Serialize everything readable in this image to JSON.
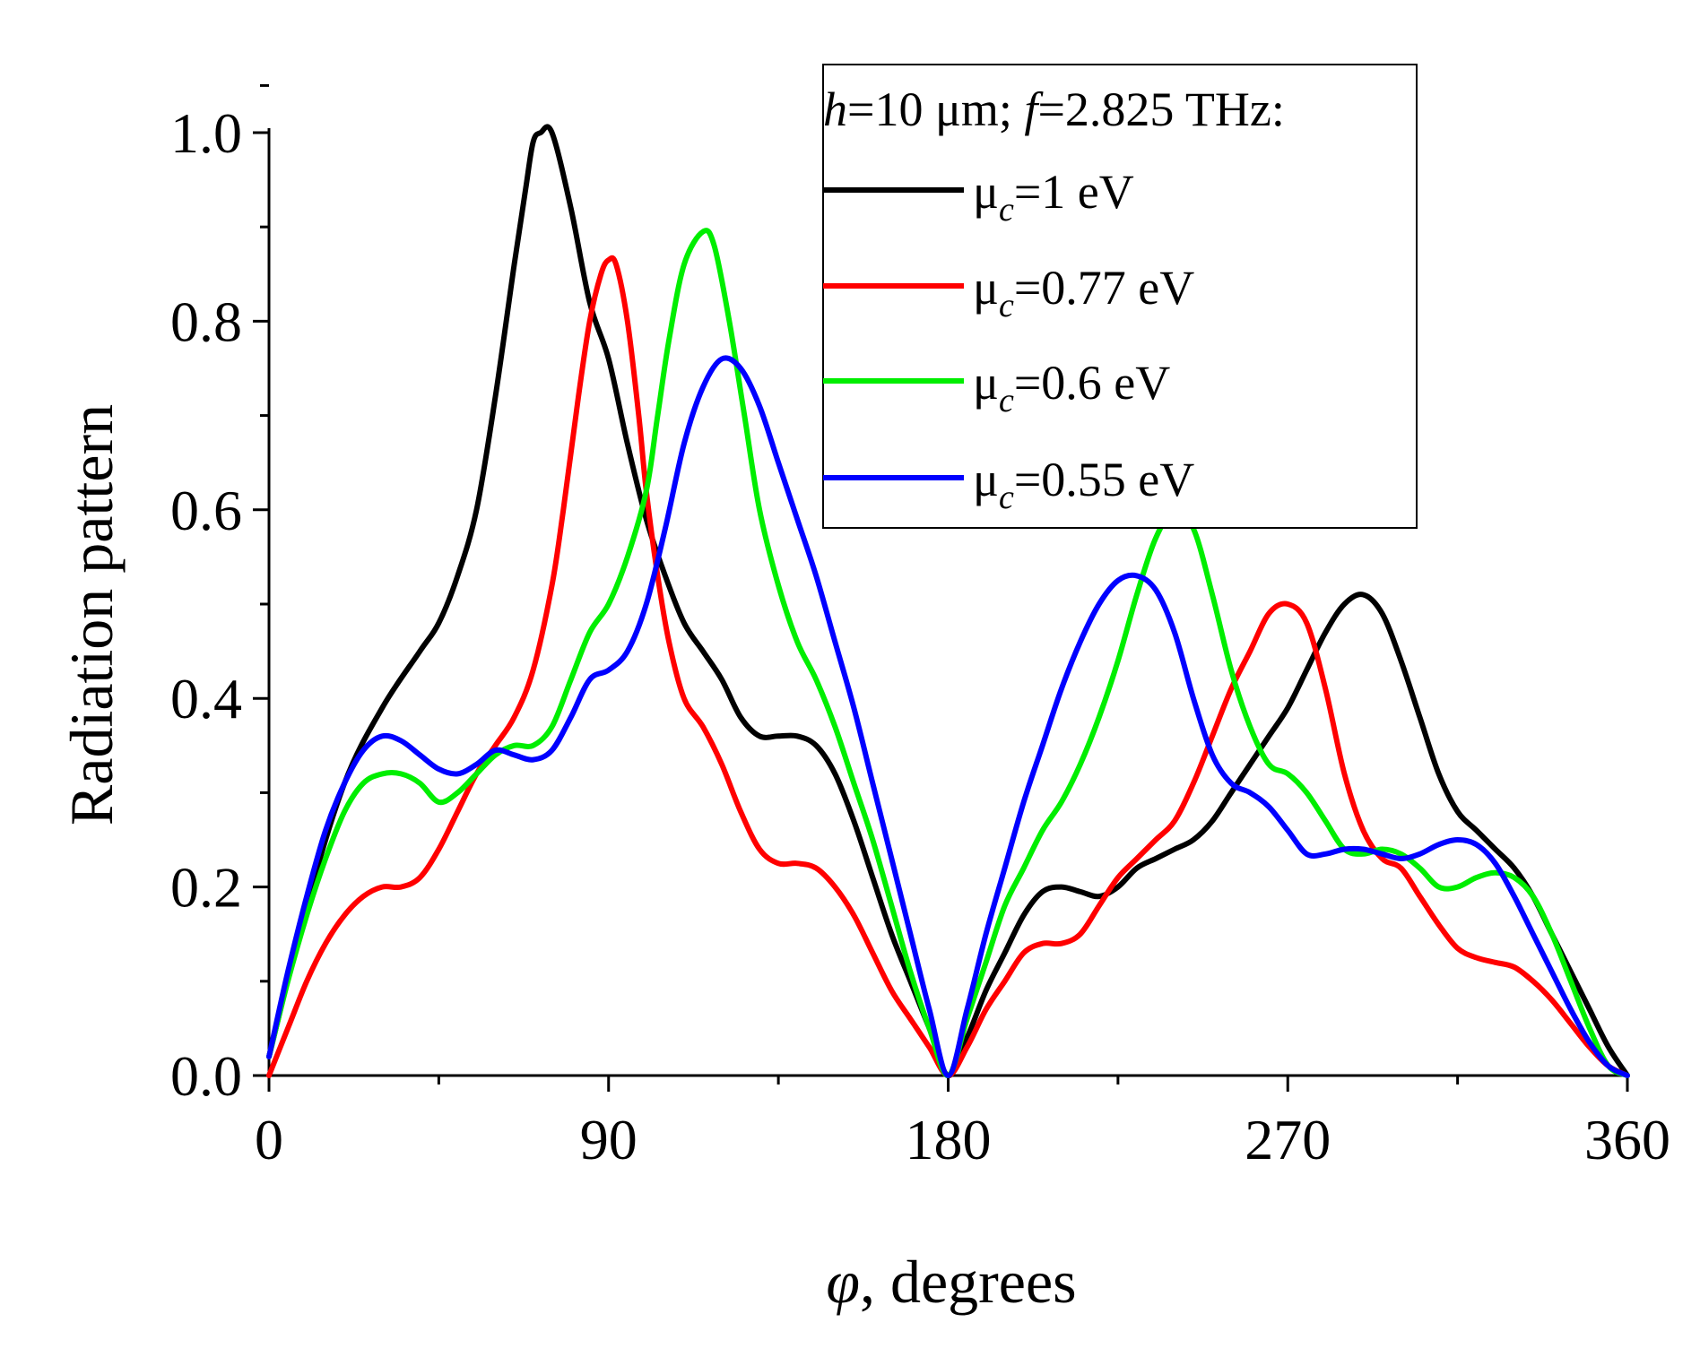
{
  "chart_data": {
    "type": "line",
    "title": "",
    "xlabel_var": "φ",
    "xlabel_rest": ", degrees",
    "ylabel": "Radiation pattern",
    "xlim": [
      0,
      360
    ],
    "ylim": [
      0,
      1.0
    ],
    "xticks": [
      0,
      90,
      180,
      270,
      360
    ],
    "xtick_labels": [
      "0",
      "90",
      "180",
      "270",
      "360"
    ],
    "yticks": [
      0.0,
      0.2,
      0.4,
      0.6,
      0.8,
      1.0
    ],
    "ytick_labels": [
      "0.0",
      "0.2",
      "0.4",
      "0.6",
      "0.8",
      "1.0"
    ],
    "grid": false,
    "legend": {
      "placement": "top-right",
      "header_h": "h",
      "header_mid": "=10 μm; ",
      "header_f": "f",
      "header_end": "=2.825 THz:"
    },
    "series": [
      {
        "name": "μc=1 eV",
        "label_mu": "μ",
        "label_sub": "c",
        "label_rest": "=1 eV",
        "color": "#000000",
        "points": [
          [
            0,
            0.02
          ],
          [
            10,
            0.18
          ],
          [
            20,
            0.31
          ],
          [
            30,
            0.39
          ],
          [
            40,
            0.45
          ],
          [
            45,
            0.48
          ],
          [
            50,
            0.53
          ],
          [
            55,
            0.6
          ],
          [
            60,
            0.72
          ],
          [
            65,
            0.86
          ],
          [
            68,
            0.94
          ],
          [
            70,
            0.99
          ],
          [
            72,
            1.0
          ],
          [
            75,
            1.0
          ],
          [
            80,
            0.92
          ],
          [
            85,
            0.82
          ],
          [
            90,
            0.76
          ],
          [
            95,
            0.67
          ],
          [
            100,
            0.59
          ],
          [
            105,
            0.53
          ],
          [
            110,
            0.48
          ],
          [
            115,
            0.45
          ],
          [
            120,
            0.42
          ],
          [
            125,
            0.38
          ],
          [
            130,
            0.36
          ],
          [
            135,
            0.36
          ],
          [
            140,
            0.36
          ],
          [
            145,
            0.35
          ],
          [
            150,
            0.32
          ],
          [
            155,
            0.27
          ],
          [
            160,
            0.21
          ],
          [
            165,
            0.15
          ],
          [
            170,
            0.1
          ],
          [
            175,
            0.05
          ],
          [
            180,
            0.0
          ],
          [
            185,
            0.04
          ],
          [
            190,
            0.09
          ],
          [
            195,
            0.13
          ],
          [
            200,
            0.17
          ],
          [
            205,
            0.195
          ],
          [
            210,
            0.2
          ],
          [
            215,
            0.195
          ],
          [
            220,
            0.19
          ],
          [
            225,
            0.2
          ],
          [
            230,
            0.22
          ],
          [
            235,
            0.23
          ],
          [
            240,
            0.24
          ],
          [
            245,
            0.25
          ],
          [
            250,
            0.27
          ],
          [
            255,
            0.3
          ],
          [
            260,
            0.33
          ],
          [
            265,
            0.36
          ],
          [
            270,
            0.39
          ],
          [
            275,
            0.43
          ],
          [
            280,
            0.47
          ],
          [
            285,
            0.5
          ],
          [
            290,
            0.51
          ],
          [
            295,
            0.49
          ],
          [
            300,
            0.44
          ],
          [
            305,
            0.38
          ],
          [
            310,
            0.32
          ],
          [
            315,
            0.28
          ],
          [
            320,
            0.26
          ],
          [
            325,
            0.24
          ],
          [
            330,
            0.22
          ],
          [
            335,
            0.19
          ],
          [
            340,
            0.15
          ],
          [
            345,
            0.11
          ],
          [
            350,
            0.07
          ],
          [
            355,
            0.03
          ],
          [
            360,
            0.0
          ]
        ]
      },
      {
        "name": "μc=0.77 eV",
        "label_mu": "μ",
        "label_sub": "c",
        "label_rest": "=0.77 eV",
        "color": "#ff0000",
        "points": [
          [
            0,
            0.0
          ],
          [
            5,
            0.05
          ],
          [
            10,
            0.1
          ],
          [
            15,
            0.14
          ],
          [
            20,
            0.17
          ],
          [
            25,
            0.19
          ],
          [
            30,
            0.2
          ],
          [
            35,
            0.2
          ],
          [
            40,
            0.21
          ],
          [
            45,
            0.24
          ],
          [
            50,
            0.28
          ],
          [
            55,
            0.32
          ],
          [
            60,
            0.35
          ],
          [
            65,
            0.38
          ],
          [
            70,
            0.43
          ],
          [
            75,
            0.52
          ],
          [
            78,
            0.6
          ],
          [
            82,
            0.72
          ],
          [
            85,
            0.8
          ],
          [
            88,
            0.85
          ],
          [
            90,
            0.865
          ],
          [
            92,
            0.86
          ],
          [
            95,
            0.8
          ],
          [
            98,
            0.7
          ],
          [
            100,
            0.62
          ],
          [
            103,
            0.53
          ],
          [
            106,
            0.46
          ],
          [
            110,
            0.4
          ],
          [
            115,
            0.37
          ],
          [
            120,
            0.33
          ],
          [
            125,
            0.28
          ],
          [
            130,
            0.24
          ],
          [
            135,
            0.225
          ],
          [
            140,
            0.225
          ],
          [
            145,
            0.22
          ],
          [
            150,
            0.2
          ],
          [
            155,
            0.17
          ],
          [
            160,
            0.13
          ],
          [
            165,
            0.09
          ],
          [
            170,
            0.06
          ],
          [
            175,
            0.03
          ],
          [
            180,
            0.0
          ],
          [
            185,
            0.03
          ],
          [
            190,
            0.07
          ],
          [
            195,
            0.1
          ],
          [
            200,
            0.13
          ],
          [
            205,
            0.14
          ],
          [
            210,
            0.14
          ],
          [
            215,
            0.15
          ],
          [
            220,
            0.18
          ],
          [
            225,
            0.21
          ],
          [
            230,
            0.23
          ],
          [
            235,
            0.25
          ],
          [
            240,
            0.27
          ],
          [
            245,
            0.31
          ],
          [
            250,
            0.36
          ],
          [
            255,
            0.41
          ],
          [
            260,
            0.45
          ],
          [
            265,
            0.49
          ],
          [
            270,
            0.5
          ],
          [
            275,
            0.48
          ],
          [
            280,
            0.41
          ],
          [
            285,
            0.32
          ],
          [
            290,
            0.26
          ],
          [
            295,
            0.23
          ],
          [
            300,
            0.22
          ],
          [
            305,
            0.19
          ],
          [
            310,
            0.16
          ],
          [
            315,
            0.135
          ],
          [
            320,
            0.125
          ],
          [
            325,
            0.12
          ],
          [
            330,
            0.115
          ],
          [
            335,
            0.1
          ],
          [
            340,
            0.08
          ],
          [
            345,
            0.055
          ],
          [
            350,
            0.03
          ],
          [
            355,
            0.01
          ],
          [
            360,
            0.0
          ]
        ]
      },
      {
        "name": "μc=0.6 eV",
        "label_mu": "μ",
        "label_sub": "c",
        "label_rest": "=0.6 eV",
        "color": "#00ee00",
        "points": [
          [
            0,
            0.02
          ],
          [
            5,
            0.1
          ],
          [
            10,
            0.17
          ],
          [
            15,
            0.23
          ],
          [
            20,
            0.28
          ],
          [
            25,
            0.31
          ],
          [
            30,
            0.32
          ],
          [
            35,
            0.32
          ],
          [
            40,
            0.31
          ],
          [
            45,
            0.29
          ],
          [
            50,
            0.3
          ],
          [
            55,
            0.32
          ],
          [
            60,
            0.34
          ],
          [
            65,
            0.35
          ],
          [
            70,
            0.35
          ],
          [
            75,
            0.37
          ],
          [
            80,
            0.42
          ],
          [
            85,
            0.47
          ],
          [
            90,
            0.5
          ],
          [
            95,
            0.55
          ],
          [
            100,
            0.62
          ],
          [
            103,
            0.7
          ],
          [
            106,
            0.78
          ],
          [
            110,
            0.86
          ],
          [
            115,
            0.895
          ],
          [
            118,
            0.88
          ],
          [
            122,
            0.8
          ],
          [
            126,
            0.7
          ],
          [
            130,
            0.6
          ],
          [
            135,
            0.52
          ],
          [
            140,
            0.46
          ],
          [
            145,
            0.42
          ],
          [
            150,
            0.37
          ],
          [
            155,
            0.31
          ],
          [
            160,
            0.25
          ],
          [
            165,
            0.18
          ],
          [
            170,
            0.11
          ],
          [
            175,
            0.05
          ],
          [
            180,
            0.0
          ],
          [
            185,
            0.06
          ],
          [
            190,
            0.12
          ],
          [
            195,
            0.18
          ],
          [
            200,
            0.22
          ],
          [
            205,
            0.26
          ],
          [
            210,
            0.29
          ],
          [
            215,
            0.33
          ],
          [
            220,
            0.38
          ],
          [
            225,
            0.44
          ],
          [
            230,
            0.51
          ],
          [
            235,
            0.57
          ],
          [
            240,
            0.6
          ],
          [
            245,
            0.58
          ],
          [
            250,
            0.51
          ],
          [
            255,
            0.43
          ],
          [
            260,
            0.37
          ],
          [
            265,
            0.33
          ],
          [
            270,
            0.32
          ],
          [
            275,
            0.3
          ],
          [
            280,
            0.27
          ],
          [
            285,
            0.24
          ],
          [
            290,
            0.235
          ],
          [
            295,
            0.24
          ],
          [
            300,
            0.235
          ],
          [
            305,
            0.22
          ],
          [
            310,
            0.2
          ],
          [
            315,
            0.2
          ],
          [
            320,
            0.21
          ],
          [
            325,
            0.215
          ],
          [
            330,
            0.21
          ],
          [
            335,
            0.19
          ],
          [
            340,
            0.15
          ],
          [
            345,
            0.1
          ],
          [
            350,
            0.05
          ],
          [
            355,
            0.01
          ],
          [
            360,
            0.0
          ]
        ]
      },
      {
        "name": "μc=0.55 eV",
        "label_mu": "μ",
        "label_sub": "c",
        "label_rest": "=0.55 eV",
        "color": "#0000ff",
        "points": [
          [
            0,
            0.02
          ],
          [
            5,
            0.11
          ],
          [
            10,
            0.19
          ],
          [
            15,
            0.26
          ],
          [
            20,
            0.31
          ],
          [
            25,
            0.345
          ],
          [
            30,
            0.36
          ],
          [
            35,
            0.355
          ],
          [
            40,
            0.34
          ],
          [
            45,
            0.325
          ],
          [
            50,
            0.32
          ],
          [
            55,
            0.33
          ],
          [
            60,
            0.345
          ],
          [
            65,
            0.34
          ],
          [
            70,
            0.335
          ],
          [
            75,
            0.345
          ],
          [
            80,
            0.38
          ],
          [
            85,
            0.42
          ],
          [
            90,
            0.43
          ],
          [
            95,
            0.45
          ],
          [
            100,
            0.5
          ],
          [
            105,
            0.58
          ],
          [
            110,
            0.67
          ],
          [
            115,
            0.73
          ],
          [
            120,
            0.76
          ],
          [
            125,
            0.75
          ],
          [
            130,
            0.71
          ],
          [
            135,
            0.65
          ],
          [
            140,
            0.59
          ],
          [
            145,
            0.53
          ],
          [
            150,
            0.46
          ],
          [
            155,
            0.39
          ],
          [
            160,
            0.31
          ],
          [
            165,
            0.23
          ],
          [
            170,
            0.15
          ],
          [
            175,
            0.07
          ],
          [
            180,
            0.0
          ],
          [
            185,
            0.07
          ],
          [
            190,
            0.15
          ],
          [
            195,
            0.22
          ],
          [
            200,
            0.29
          ],
          [
            205,
            0.35
          ],
          [
            210,
            0.41
          ],
          [
            215,
            0.46
          ],
          [
            220,
            0.5
          ],
          [
            225,
            0.525
          ],
          [
            230,
            0.53
          ],
          [
            235,
            0.515
          ],
          [
            240,
            0.47
          ],
          [
            245,
            0.4
          ],
          [
            250,
            0.34
          ],
          [
            255,
            0.31
          ],
          [
            260,
            0.3
          ],
          [
            265,
            0.285
          ],
          [
            270,
            0.26
          ],
          [
            275,
            0.235
          ],
          [
            280,
            0.235
          ],
          [
            285,
            0.24
          ],
          [
            290,
            0.24
          ],
          [
            295,
            0.235
          ],
          [
            300,
            0.23
          ],
          [
            305,
            0.235
          ],
          [
            310,
            0.245
          ],
          [
            315,
            0.25
          ],
          [
            320,
            0.245
          ],
          [
            325,
            0.225
          ],
          [
            330,
            0.19
          ],
          [
            335,
            0.15
          ],
          [
            340,
            0.11
          ],
          [
            345,
            0.07
          ],
          [
            350,
            0.035
          ],
          [
            355,
            0.01
          ],
          [
            360,
            0.0
          ]
        ]
      }
    ]
  }
}
